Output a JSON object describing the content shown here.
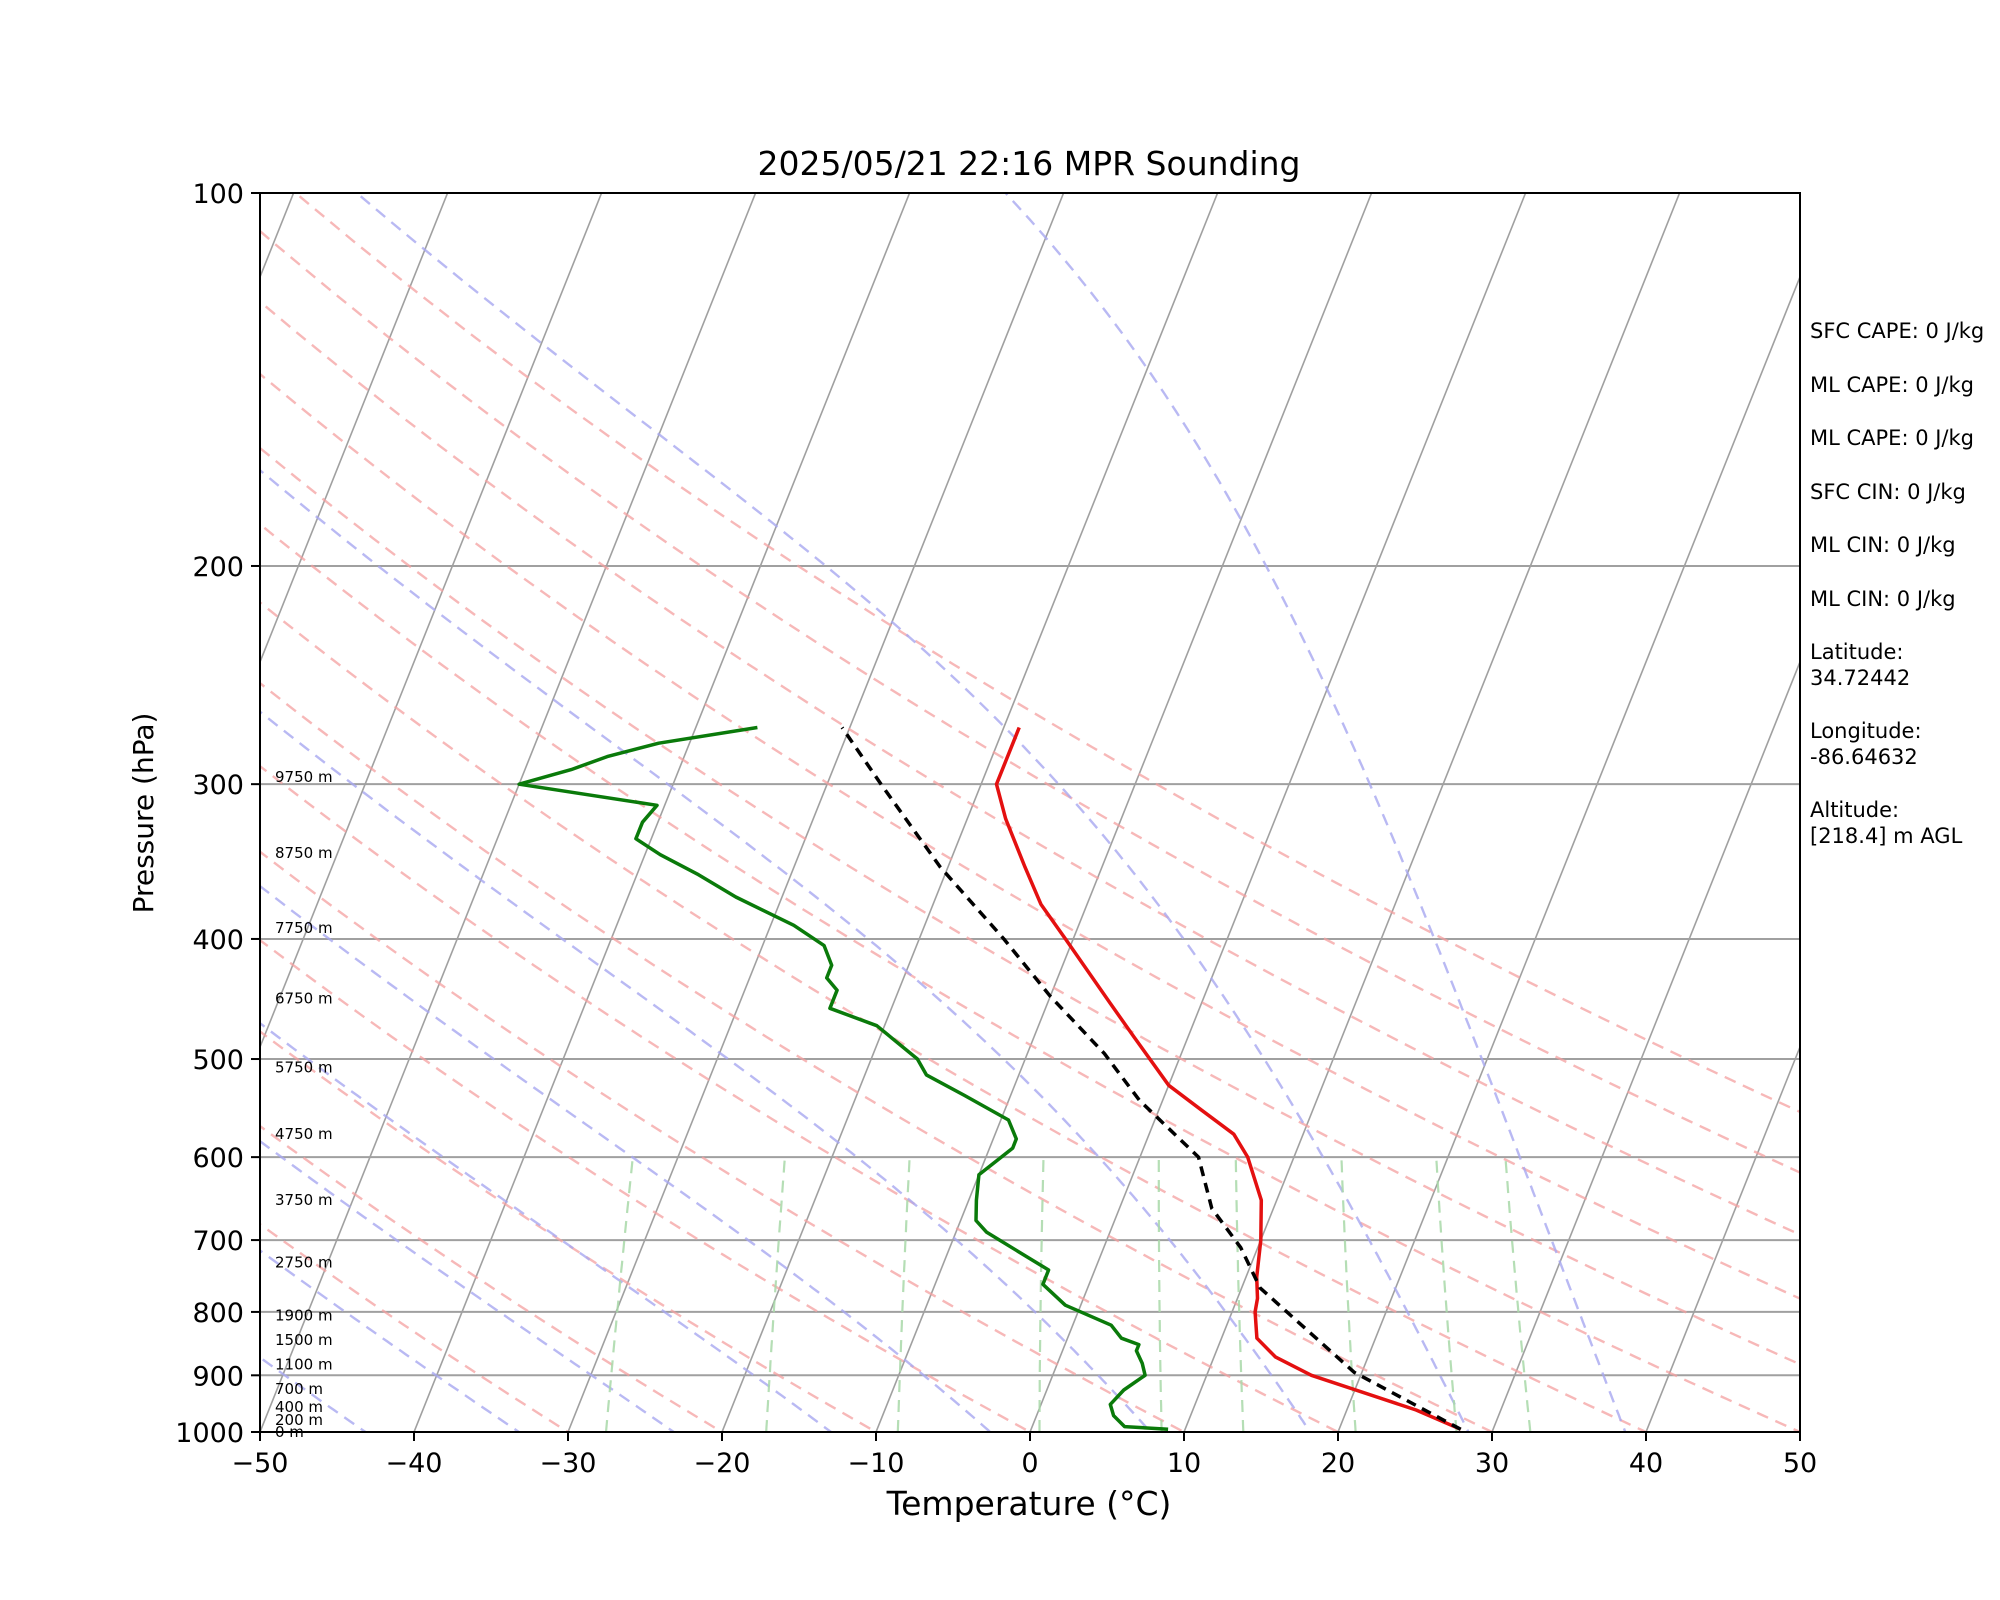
{
  "chart_data": {
    "type": "line",
    "title": "2025/05/21 22:16 MPR Sounding",
    "xlabel": "Temperature (°C)",
    "ylabel": "Pressure (hPa)",
    "xlim": [
      -50,
      50
    ],
    "ylim": [
      1000,
      100
    ],
    "y_scale": "log",
    "skew": "skew-T log-p",
    "x_ticks": [
      -50,
      -40,
      -30,
      -20,
      -10,
      0,
      10,
      20,
      30,
      40,
      50
    ],
    "x_tick_labels": [
      "−50",
      "−40",
      "−30",
      "−20",
      "−10",
      "0",
      "10",
      "20",
      "30",
      "40",
      "50"
    ],
    "y_ticks": [
      1000,
      900,
      800,
      700,
      600,
      500,
      400,
      300,
      200,
      100
    ],
    "y_tick_labels": [
      "1000",
      "900",
      "800",
      "700",
      "600",
      "500",
      "400",
      "300",
      "200",
      "100"
    ],
    "grid": true,
    "background_lines": {
      "isotherms_color": "#a0a0a0",
      "dry_adiabats_color": "#f4a0a0",
      "moist_adiabats_color": "#a8a8f0",
      "mixing_ratio_color": "#a8d8a8",
      "isotherm_values": [
        -130,
        -120,
        -110,
        -100,
        -90,
        -80,
        -70,
        -60,
        -50,
        -40,
        -30,
        -20,
        -10,
        0,
        10,
        20,
        30,
        40,
        50
      ],
      "dry_adiabat_thetas": [
        -30,
        -20,
        -10,
        0,
        10,
        20,
        30,
        40,
        50,
        60,
        70,
        80,
        90,
        100
      ],
      "moist_adiabat_surface_temps": [
        -40,
        -30,
        -20,
        -10,
        0,
        10,
        20,
        30,
        40
      ],
      "mixing_ratio_values": [
        0.4,
        1,
        2,
        4,
        7,
        10,
        16,
        24,
        32
      ]
    },
    "series": [
      {
        "color": "#e41010",
        "style": "solid",
        "points": [
          [
            27.9,
            995
          ],
          [
            24.5,
            960
          ],
          [
            16.8,
            900
          ],
          [
            14.0,
            870
          ],
          [
            12.3,
            840
          ],
          [
            11.5,
            800
          ],
          [
            11.3,
            780
          ],
          [
            10.7,
            750
          ],
          [
            10.0,
            700
          ],
          [
            9.0,
            650
          ],
          [
            7.0,
            600
          ],
          [
            5.5,
            575
          ],
          [
            2.8,
            550
          ],
          [
            0.0,
            525
          ],
          [
            -3.5,
            480
          ],
          [
            -6.0,
            450
          ],
          [
            -10.5,
            400
          ],
          [
            -13.0,
            375
          ],
          [
            -15.0,
            350
          ],
          [
            -17.5,
            320
          ],
          [
            -19.0,
            300
          ],
          [
            -19.0,
            270
          ]
        ]
      },
      {
        "color": "#0a7a0a",
        "style": "solid",
        "points": [
          [
            8.9,
            995
          ],
          [
            6.0,
            990
          ],
          [
            5.0,
            970
          ],
          [
            4.5,
            950
          ],
          [
            5.0,
            925
          ],
          [
            6.0,
            900
          ],
          [
            5.5,
            880
          ],
          [
            4.8,
            860
          ],
          [
            4.8,
            850
          ],
          [
            3.5,
            840
          ],
          [
            2.5,
            820
          ],
          [
            -1.0,
            790
          ],
          [
            -3.0,
            760
          ],
          [
            -3.0,
            740
          ],
          [
            -8.0,
            690
          ],
          [
            -9.0,
            675
          ],
          [
            -9.5,
            650
          ],
          [
            -10.0,
            620
          ],
          [
            -9.0,
            600
          ],
          [
            -8.5,
            590
          ],
          [
            -8.5,
            580
          ],
          [
            -9.5,
            560
          ],
          [
            -13.0,
            535
          ],
          [
            -16.0,
            515
          ],
          [
            -17.0,
            500
          ],
          [
            -20.5,
            470
          ],
          [
            -24.0,
            455
          ],
          [
            -24.0,
            440
          ],
          [
            -25.0,
            430
          ],
          [
            -25.0,
            420
          ],
          [
            -26.0,
            405
          ],
          [
            -28.5,
            390
          ],
          [
            -33.0,
            370
          ],
          [
            -36.0,
            355
          ],
          [
            -39.0,
            342
          ],
          [
            -41.0,
            332
          ],
          [
            -41.0,
            322
          ],
          [
            -40.5,
            312
          ],
          [
            -50.0,
            300
          ],
          [
            -47.0,
            292
          ],
          [
            -45.0,
            285
          ],
          [
            -42.0,
            278
          ],
          [
            -36.0,
            270
          ]
        ]
      },
      {
        "color": "#000000",
        "style": "dashed",
        "points": [
          [
            27.9,
            995
          ],
          [
            19.5,
            895
          ],
          [
            11.2,
            765
          ],
          [
            8.9,
            710
          ],
          [
            6.0,
            660
          ],
          [
            3.8,
            600
          ],
          [
            -1.5,
            540
          ],
          [
            -5.0,
            495
          ],
          [
            -10.0,
            445
          ],
          [
            -14.5,
            400
          ],
          [
            -20.5,
            350
          ],
          [
            -26.5,
            300
          ],
          [
            -30.5,
            270
          ]
        ]
      }
    ],
    "height_labels": [
      {
        "text": "0 m",
        "p": 1000
      },
      {
        "text": "200 m",
        "p": 978
      },
      {
        "text": "400 m",
        "p": 955
      },
      {
        "text": "700 m",
        "p": 923
      },
      {
        "text": "1100 m",
        "p": 882
      },
      {
        "text": "1500 m",
        "p": 843
      },
      {
        "text": "1900 m",
        "p": 805
      },
      {
        "text": "2750 m",
        "p": 730
      },
      {
        "text": "3750 m",
        "p": 650
      },
      {
        "text": "4750 m",
        "p": 575
      },
      {
        "text": "5750 m",
        "p": 508
      },
      {
        "text": "6750 m",
        "p": 447
      },
      {
        "text": "7750 m",
        "p": 392
      },
      {
        "text": "8750 m",
        "p": 341
      },
      {
        "text": "9750 m",
        "p": 296
      }
    ]
  },
  "stats": {
    "sfc_cape": "SFC CAPE: 0 J/kg",
    "ml_cape_1": "ML CAPE: 0 J/kg",
    "ml_cape_2": "ML CAPE: 0 J/kg",
    "sfc_cin": "SFC CIN: 0 J/kg",
    "ml_cin_1": "ML CIN: 0 J/kg",
    "ml_cin_2": "ML CIN: 0 J/kg",
    "latitude_label": "Latitude:",
    "latitude_value": "34.72442",
    "longitude_label": "Longitude:",
    "longitude_value": "-86.64632",
    "altitude_label": "Altitude:",
    "altitude_value": "[218.4] m AGL"
  }
}
